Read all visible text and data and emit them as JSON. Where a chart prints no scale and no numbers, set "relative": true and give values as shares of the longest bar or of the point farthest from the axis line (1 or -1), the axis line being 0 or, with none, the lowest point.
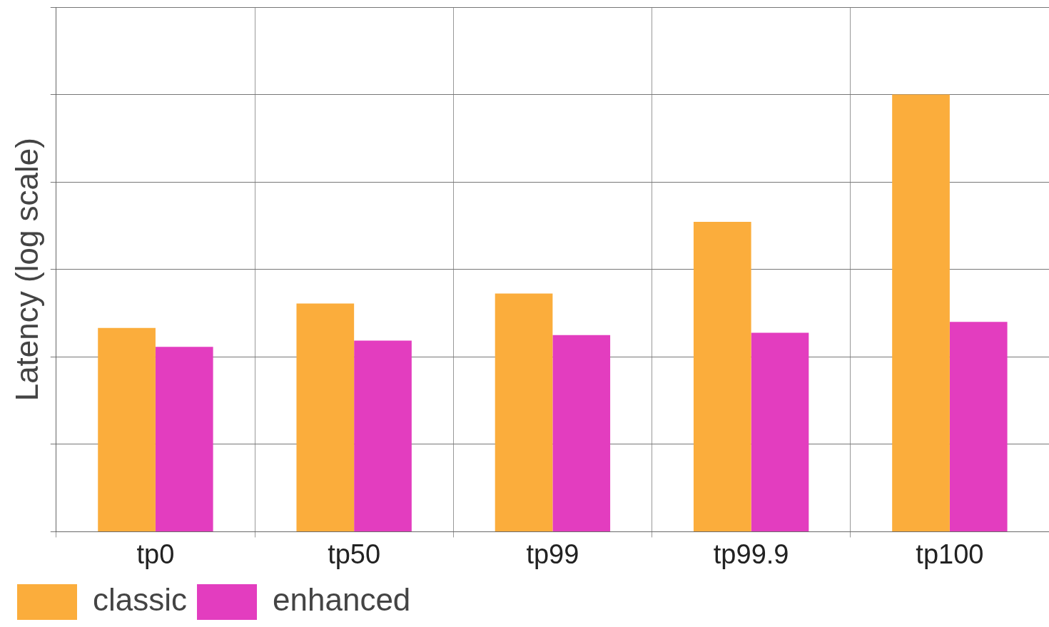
{
  "chart_data": {
    "type": "bar",
    "ylabel": "Latency (log scale)",
    "categories": [
      "tp0",
      "tp50",
      "tp99",
      "tp99.9",
      "tp100"
    ],
    "relative": true,
    "grid": true,
    "legend": "bottom left",
    "series": [
      {
        "name": "classic",
        "color": "#fbad3c",
        "values": [
          0.466,
          0.522,
          0.545,
          0.709,
          1
        ]
      },
      {
        "name": "enhanced",
        "color": "#e33dbf",
        "values": [
          0.423,
          0.437,
          0.45,
          0.455,
          0.48
        ]
      }
    ]
  }
}
